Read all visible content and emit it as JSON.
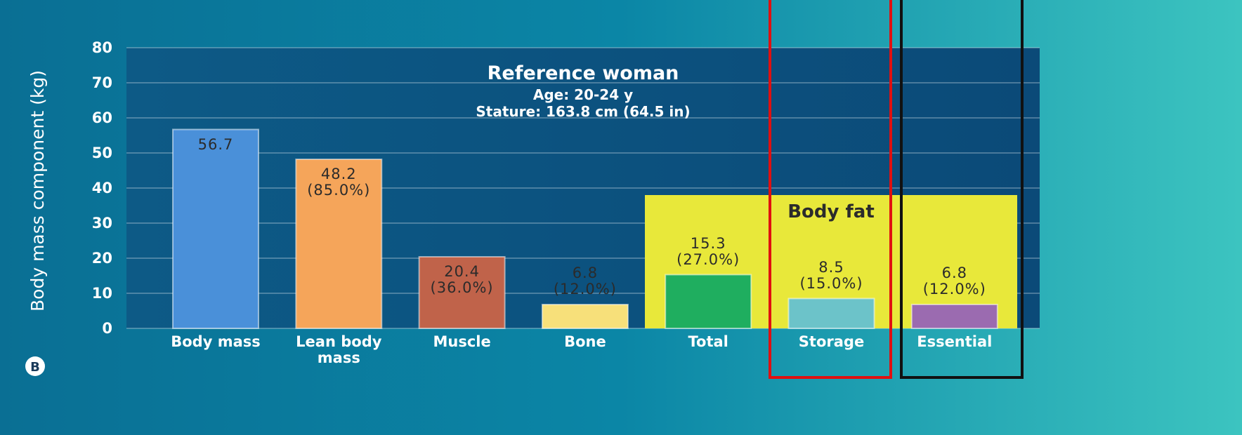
{
  "chart_data": {
    "type": "bar",
    "title": "Reference woman",
    "subtitle": [
      "Age: 20-24 y",
      "Stature: 163.8 cm (64.5 in)"
    ],
    "y_label": "Body mass component (kg)",
    "annotations": {
      "group": "Body fat",
      "panel": "B"
    },
    "categories": [
      "Body mass",
      "Lean body mass",
      "Muscle",
      "Bone",
      "Total",
      "Storage",
      "Essential"
    ],
    "values": [
      56.7,
      48.2,
      20.4,
      6.8,
      15.3,
      8.5,
      6.8
    ],
    "value_labels": [
      "56.7",
      "48.2 (85.0%)",
      "20.4 (36.0%)",
      "6.8 (12.0%)",
      "15.3 (27.0%)",
      "8.5 (15.0%)",
      "6.8 (12.0%)"
    ],
    "colors": [
      "#4a90d9",
      "#f5a55a",
      "#c0634a",
      "#f7e07a",
      "#1fae5f",
      "#6cc3c9",
      "#9b6bb0"
    ],
    "ylim": [
      0,
      80
    ],
    "yticks": [
      0,
      10,
      20,
      30,
      40,
      50,
      60,
      70,
      80
    ],
    "grid": true
  }
}
